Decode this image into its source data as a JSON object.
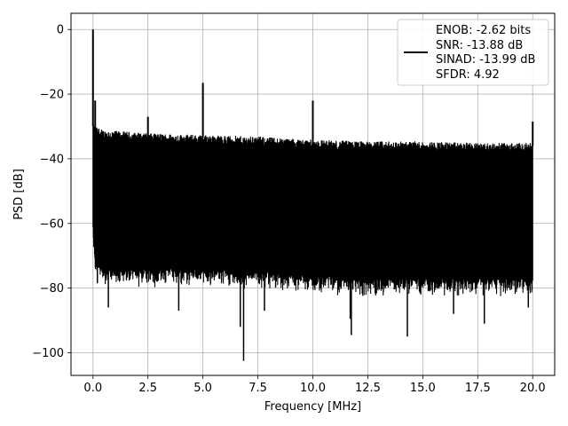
{
  "chart_data": {
    "type": "line",
    "xlabel": "Frequency [MHz]",
    "ylabel": "PSD [dB]",
    "xlim": [
      -1.0,
      21.0
    ],
    "ylim": [
      -107.0,
      5.0
    ],
    "xticks": [
      0.0,
      2.5,
      5.0,
      7.5,
      10.0,
      12.5,
      15.0,
      17.5,
      20.0
    ],
    "xtick_labels": [
      "0.0",
      "2.5",
      "5.0",
      "7.5",
      "10.0",
      "12.5",
      "15.0",
      "17.5",
      "20.0"
    ],
    "yticks": [
      0,
      -20,
      -40,
      -60,
      -80,
      -100
    ],
    "ytick_labels": [
      "0",
      "−20",
      "−40",
      "−60",
      "−80",
      "−100"
    ],
    "grid": true,
    "legend_position": "top-right",
    "series": [
      {
        "color": "#000000",
        "noise_envelope": {
          "x": [
            0.0,
            0.1,
            0.5,
            2.5,
            5.0,
            7.5,
            10.0,
            12.5,
            15.0,
            17.5,
            20.0
          ],
          "upper": [
            -30,
            -31,
            -32,
            -33,
            -33.5,
            -34,
            -35,
            -35.5,
            -35.5,
            -36,
            -36
          ],
          "lower": [
            -60,
            -72,
            -74,
            -74,
            -74,
            -75,
            -76,
            -77,
            -77,
            -77,
            -77
          ]
        },
        "peaks": [
          {
            "x": 0.0,
            "y": 0.0
          },
          {
            "x": 0.1,
            "y": -22.0
          },
          {
            "x": 2.5,
            "y": -27.0
          },
          {
            "x": 5.0,
            "y": -16.5
          },
          {
            "x": 10.0,
            "y": -22.0
          },
          {
            "x": 20.0,
            "y": -28.5
          }
        ],
        "dips": [
          {
            "x": 0.2,
            "y": -78.5
          },
          {
            "x": 0.7,
            "y": -86.0
          },
          {
            "x": 3.9,
            "y": -87.0
          },
          {
            "x": 6.7,
            "y": -92.0
          },
          {
            "x": 6.85,
            "y": -102.5
          },
          {
            "x": 7.8,
            "y": -87.0
          },
          {
            "x": 11.7,
            "y": -89.5
          },
          {
            "x": 11.75,
            "y": -94.5
          },
          {
            "x": 14.3,
            "y": -95.0
          },
          {
            "x": 16.4,
            "y": -88.0
          },
          {
            "x": 17.8,
            "y": -91.0
          },
          {
            "x": 19.8,
            "y": -86.0
          }
        ]
      }
    ],
    "legend": {
      "lines": [
        "ENOB: -2.62 bits",
        "SNR: -13.88 dB",
        "SINAD: -13.99 dB",
        "SFDR: 4.92"
      ]
    }
  }
}
